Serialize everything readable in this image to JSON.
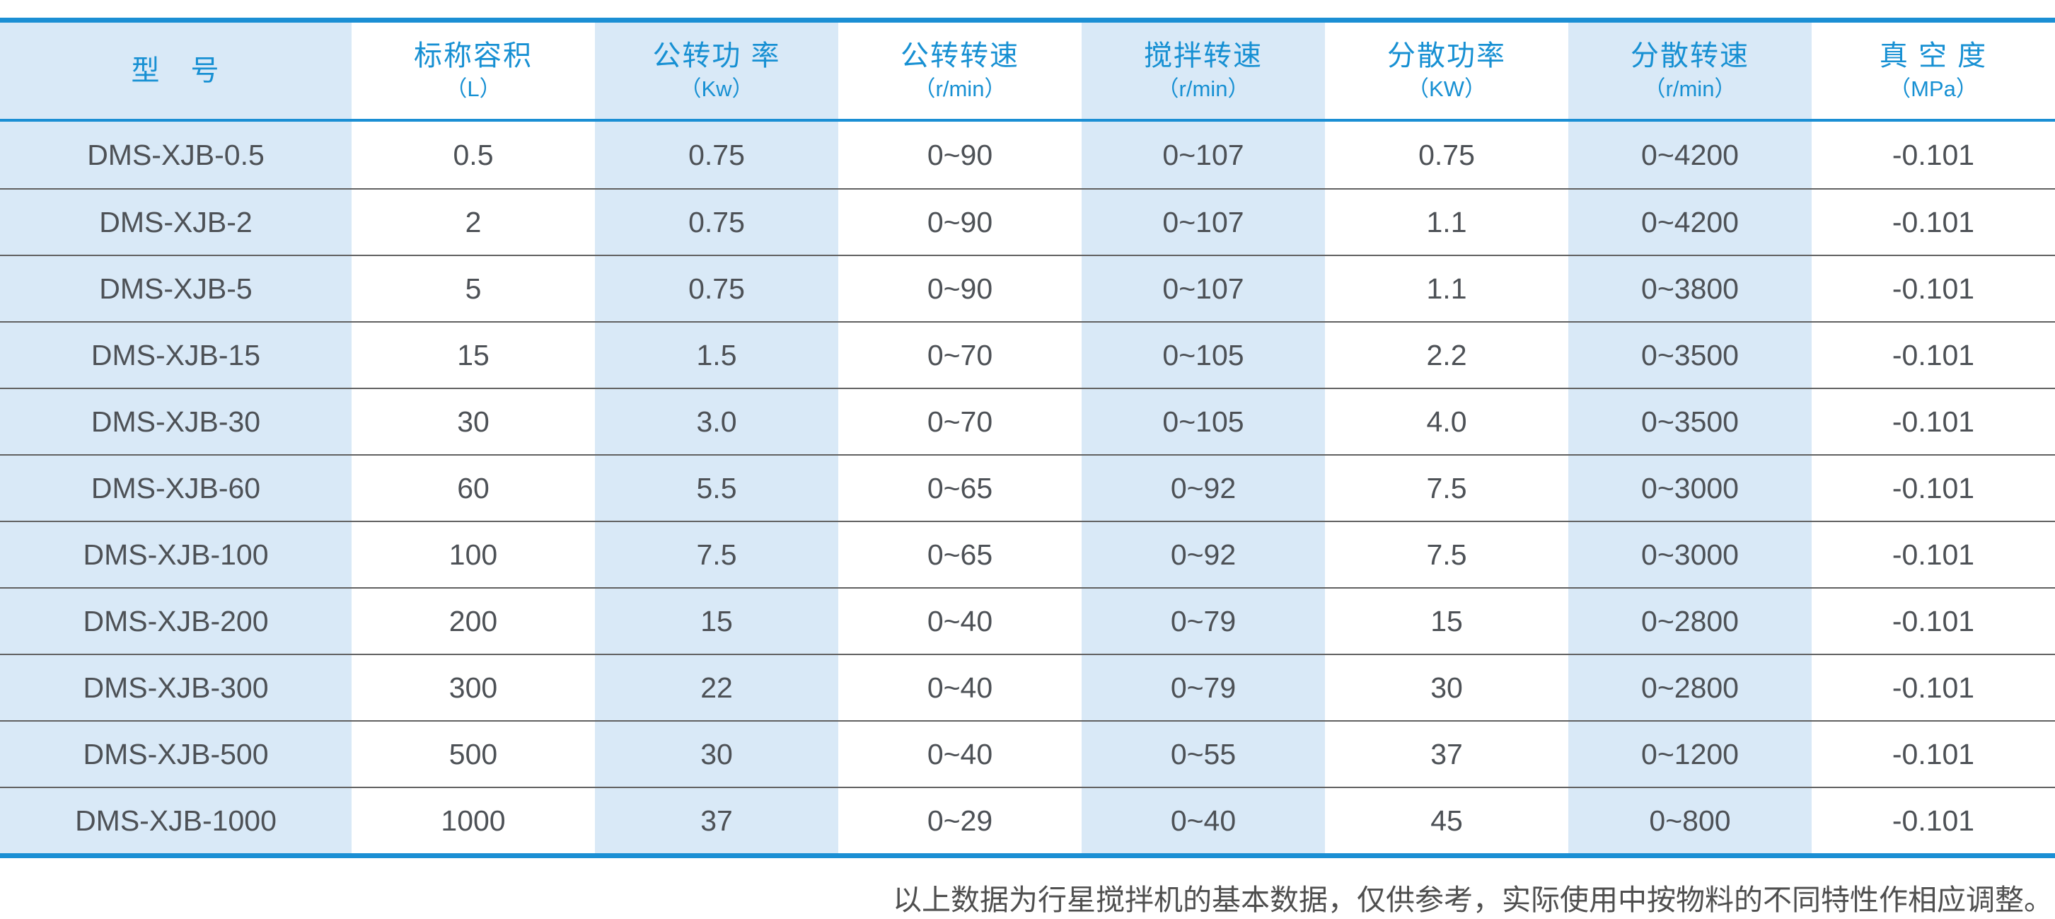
{
  "colors": {
    "accent_blue": "#1790d3",
    "border_blue": "#1b8fd4",
    "light_blue_column": "#d9e9f7",
    "row_separator_gray": "#616161",
    "data_text_gray": "#4d5156"
  },
  "table": {
    "columns": [
      {
        "title": "型　号",
        "unit": ""
      },
      {
        "title": "标称容积",
        "unit": "（L）"
      },
      {
        "title": "公转功 率",
        "unit": "（Kw）"
      },
      {
        "title": "公转转速",
        "unit": "（r/min）"
      },
      {
        "title": "搅拌转速",
        "unit": "（r/min）"
      },
      {
        "title": "分散功率",
        "unit": "（KW）"
      },
      {
        "title": "分散转速",
        "unit": "（r/min）"
      },
      {
        "title": "真 空 度",
        "unit": "（MPa）"
      }
    ],
    "rows": [
      [
        "DMS-XJB-0.5",
        "0.5",
        "0.75",
        "0~90",
        "0~107",
        "0.75",
        "0~4200",
        "-0.101"
      ],
      [
        "DMS-XJB-2",
        "2",
        "0.75",
        "0~90",
        "0~107",
        "1.1",
        "0~4200",
        "-0.101"
      ],
      [
        "DMS-XJB-5",
        "5",
        "0.75",
        "0~90",
        "0~107",
        "1.1",
        "0~3800",
        "-0.101"
      ],
      [
        "DMS-XJB-15",
        "15",
        "1.5",
        "0~70",
        "0~105",
        "2.2",
        "0~3500",
        "-0.101"
      ],
      [
        "DMS-XJB-30",
        "30",
        "3.0",
        "0~70",
        "0~105",
        "4.0",
        "0~3500",
        "-0.101"
      ],
      [
        "DMS-XJB-60",
        "60",
        "5.5",
        "0~65",
        "0~92",
        "7.5",
        "0~3000",
        "-0.101"
      ],
      [
        "DMS-XJB-100",
        "100",
        "7.5",
        "0~65",
        "0~92",
        "7.5",
        "0~3000",
        "-0.101"
      ],
      [
        "DMS-XJB-200",
        "200",
        "15",
        "0~40",
        "0~79",
        "15",
        "0~2800",
        "-0.101"
      ],
      [
        "DMS-XJB-300",
        "300",
        "22",
        "0~40",
        "0~79",
        "30",
        "0~2800",
        "-0.101"
      ],
      [
        "DMS-XJB-500",
        "500",
        "30",
        "0~40",
        "0~55",
        "37",
        "0~1200",
        "-0.101"
      ],
      [
        "DMS-XJB-1000",
        "1000",
        "37",
        "0~29",
        "0~40",
        "45",
        "0~800",
        "-0.101"
      ]
    ]
  },
  "footnote": "以上数据为行星搅拌机的基本数据，仅供参考，实际使用中按物料的不同特性作相应调整。"
}
